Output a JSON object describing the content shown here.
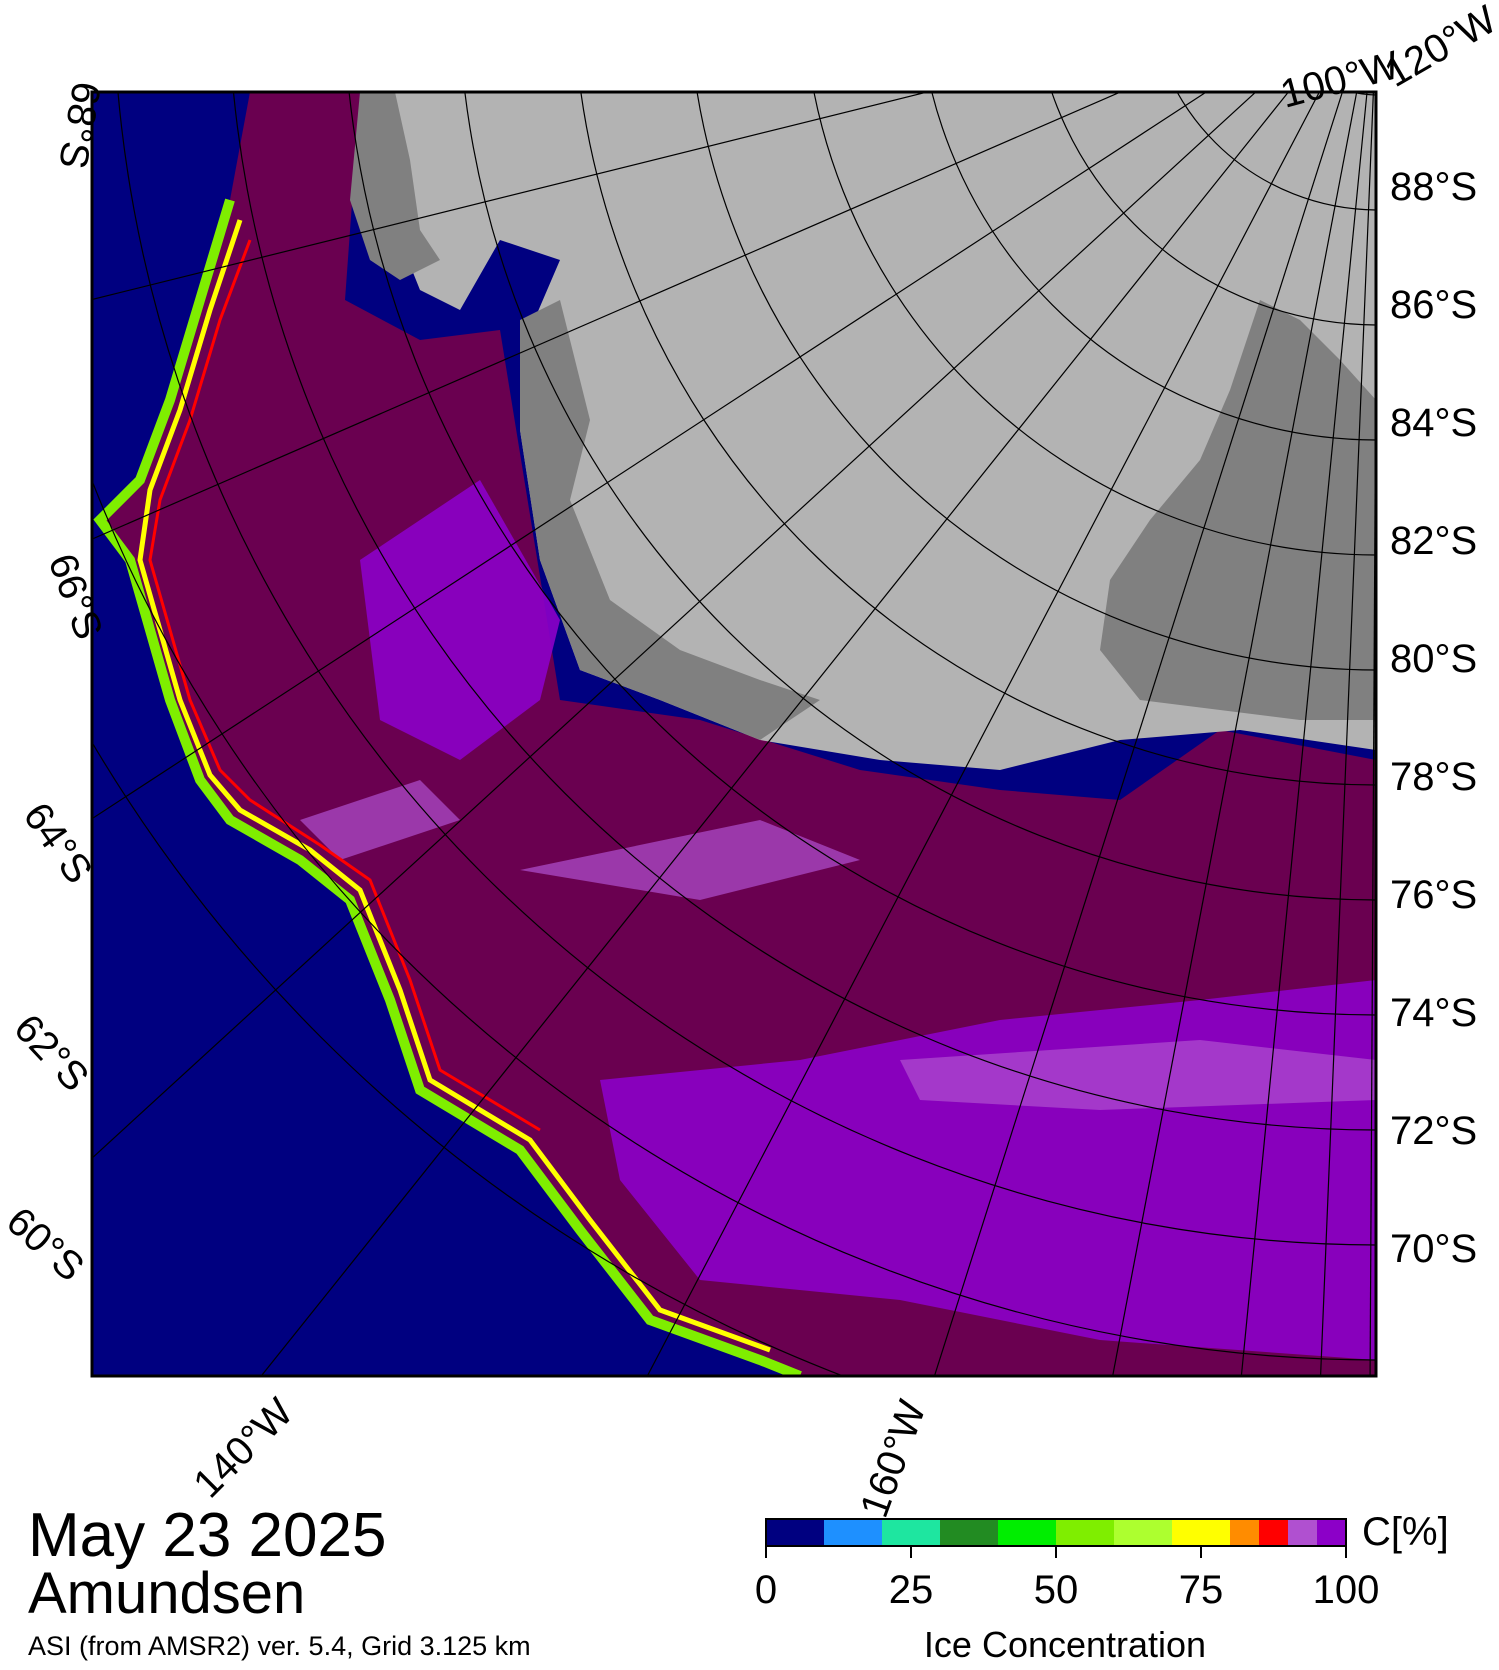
{
  "date": "May 23 2025",
  "region": "Amundsen",
  "source_note": "ASI (from AMSR2) ver. 5.4,  Grid 3.125 km",
  "colorbar": {
    "unit_label": "C[%]",
    "title": "Ice Concentration",
    "tick_labels": [
      "0",
      "25",
      "50",
      "75",
      "100"
    ],
    "colors": [
      "#000080",
      "#1e90ff",
      "#1ee6a0",
      "#228b22",
      "#00ee00",
      "#7fee00",
      "#adff2f",
      "#ffff00",
      "#ff8c00",
      "#ff0000",
      "#b050d0",
      "#8c00c8",
      "#6a0050"
    ]
  },
  "map": {
    "colors": {
      "open_ocean": "#000080",
      "pack_ice": "#6a0050",
      "ice_violet": "#8c00c8",
      "ice_lilac": "#b050d0",
      "land": "#b3b3b3",
      "ice_shelf": "#808080",
      "edge_green": "#7fee00",
      "edge_yellow": "#ffff00",
      "edge_red": "#ff0000",
      "graticule": "#000000"
    },
    "latitude_labels": [
      "88°S",
      "86°S",
      "84°S",
      "82°S",
      "80°S",
      "78°S",
      "76°S",
      "74°S",
      "72°S",
      "70°S"
    ],
    "left_latitude_labels": [
      "68°S",
      "66°S",
      "64°S",
      "62°S",
      "60°S"
    ],
    "top_longitude_labels": [
      "100°W",
      "120°W"
    ],
    "bottom_longitude_labels": [
      "140°W",
      "160°W"
    ]
  }
}
